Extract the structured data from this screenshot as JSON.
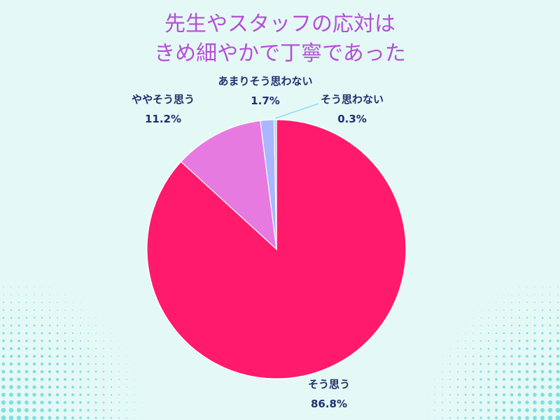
{
  "chart_data": {
    "type": "pie",
    "title_lines": [
      "先生やスタッフの応対は",
      "きめ細やかで丁寧であった"
    ],
    "slices": [
      {
        "label": "そう思う",
        "value": 86.8,
        "value_label": "86.8%",
        "color": "#ff1a6b"
      },
      {
        "label": "ややそう思う",
        "value": 11.2,
        "value_label": "11.2%",
        "color": "#e77ae0"
      },
      {
        "label": "あまりそう思わない",
        "value": 1.7,
        "value_label": "1.7%",
        "color": "#aab6ff"
      },
      {
        "label": "そう思わない",
        "value": 0.3,
        "value_label": "0.3%",
        "color": "#8fdcf5"
      }
    ]
  },
  "background": {
    "color": "#e4f9f6",
    "dot_color": "#63d3d9"
  }
}
